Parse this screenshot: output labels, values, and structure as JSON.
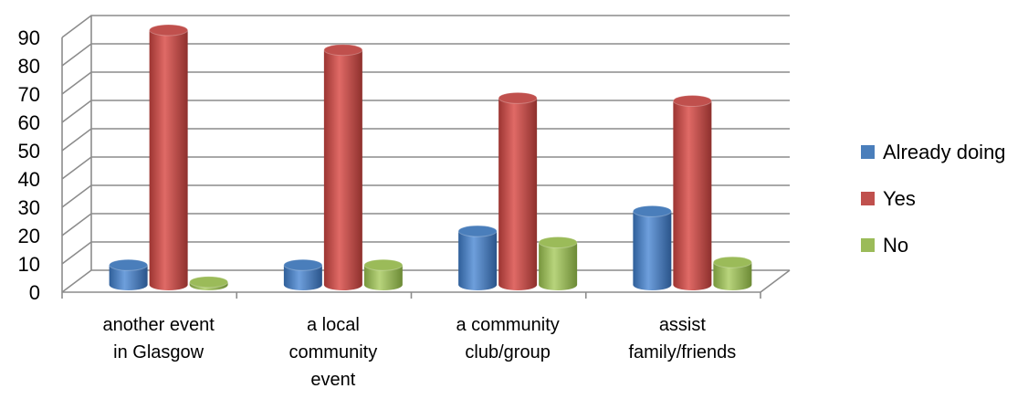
{
  "chart_data": {
    "type": "bar",
    "title": "",
    "xlabel": "",
    "ylabel": "",
    "ylim": [
      0,
      90
    ],
    "yticks": [
      0,
      10,
      20,
      30,
      40,
      50,
      60,
      70,
      80,
      90
    ],
    "categories": [
      [
        "another event",
        "in Glasgow"
      ],
      [
        "a local",
        "community",
        "event"
      ],
      [
        "a community",
        "club/group"
      ],
      [
        "assist",
        "family/friends"
      ]
    ],
    "series": [
      {
        "name": "Already doing",
        "color": "#4a7ebb",
        "values": [
          7,
          7,
          19,
          26
        ]
      },
      {
        "name": "Yes",
        "color": "#c0504d",
        "values": [
          90,
          83,
          66,
          65
        ]
      },
      {
        "name": "No",
        "color": "#9bbb59",
        "values": [
          1,
          7,
          15,
          8
        ]
      }
    ],
    "grid": true,
    "legend": "right"
  }
}
